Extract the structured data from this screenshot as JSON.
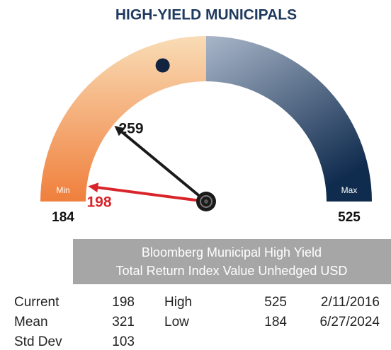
{
  "chart_data": {
    "type": "gauge",
    "title": "HIGH-YIELD MUNICIPALS",
    "min": 184,
    "max": 525,
    "min_label": "Min",
    "max_label": "Max",
    "low_color": "#f07f3c",
    "high_color": "#0f2b4e",
    "needles": [
      {
        "value": 259,
        "color": "#1a1a1a"
      },
      {
        "value": 198,
        "color": "#d9252a"
      }
    ],
    "marker_color": "#12233f"
  },
  "banner": [
    "Bloomberg Municipal High Yield",
    "Total Return Index Value Unhedged USD"
  ],
  "table": {
    "rows": [
      [
        "Current",
        198,
        "High",
        525,
        "2/11/2016"
      ],
      [
        "Mean",
        321,
        "Low",
        184,
        "6/27/2024"
      ],
      [
        "Std Dev",
        103
      ]
    ]
  }
}
